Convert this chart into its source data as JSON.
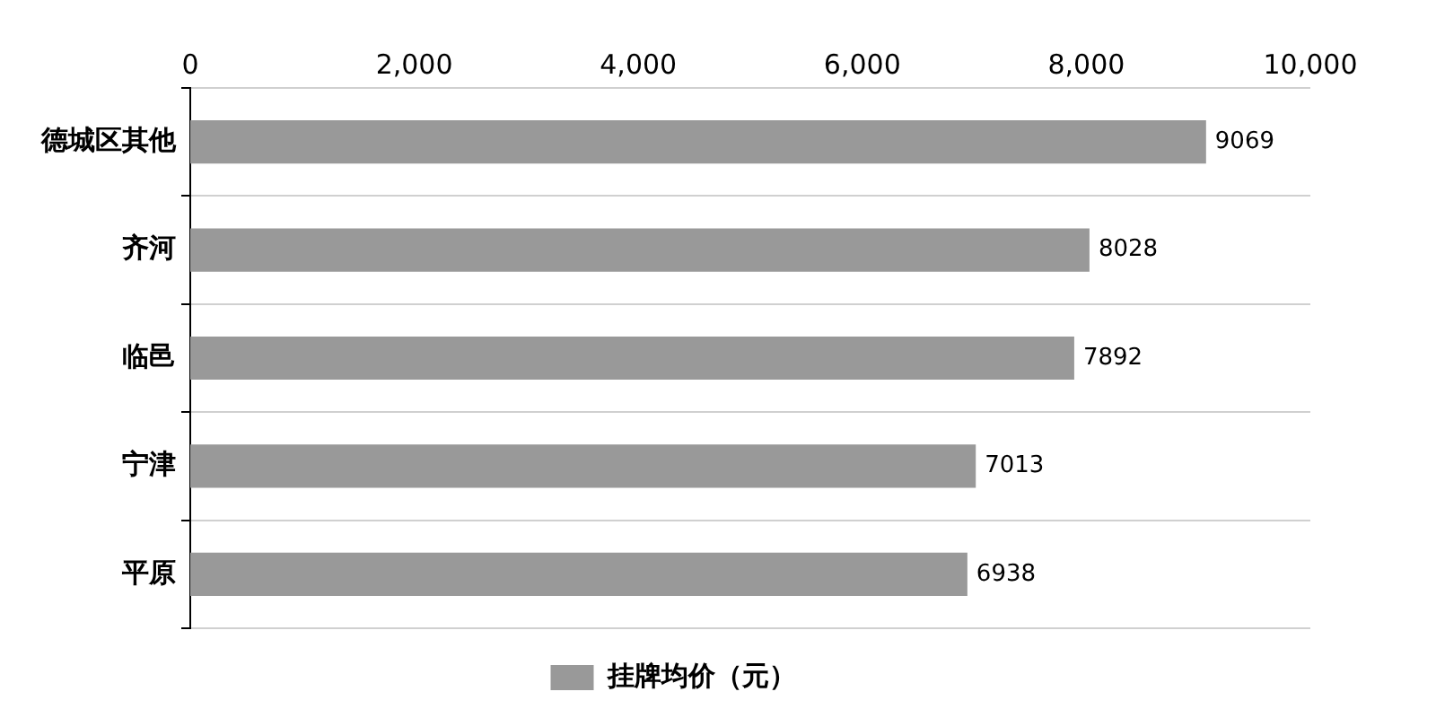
{
  "chart_data": {
    "type": "bar",
    "orientation": "horizontal",
    "categories": [
      "德城区其他",
      "齐河",
      "临邑",
      "宁津",
      "平原"
    ],
    "series": [
      {
        "name": "挂牌均价（元）",
        "color": "#999999",
        "values": [
          9069,
          8028,
          7892,
          7013,
          6938
        ]
      }
    ],
    "xlim": [
      0,
      10000
    ],
    "xticks": [
      {
        "value": 0,
        "label": "0"
      },
      {
        "value": 2000,
        "label": "2,000"
      },
      {
        "value": 4000,
        "label": "4,000"
      },
      {
        "value": 6000,
        "label": "6,000"
      },
      {
        "value": 8000,
        "label": "8,000"
      },
      {
        "value": 10000,
        "label": "10,000"
      }
    ],
    "grid": "y",
    "legend": "bottom",
    "data_labels": true
  }
}
